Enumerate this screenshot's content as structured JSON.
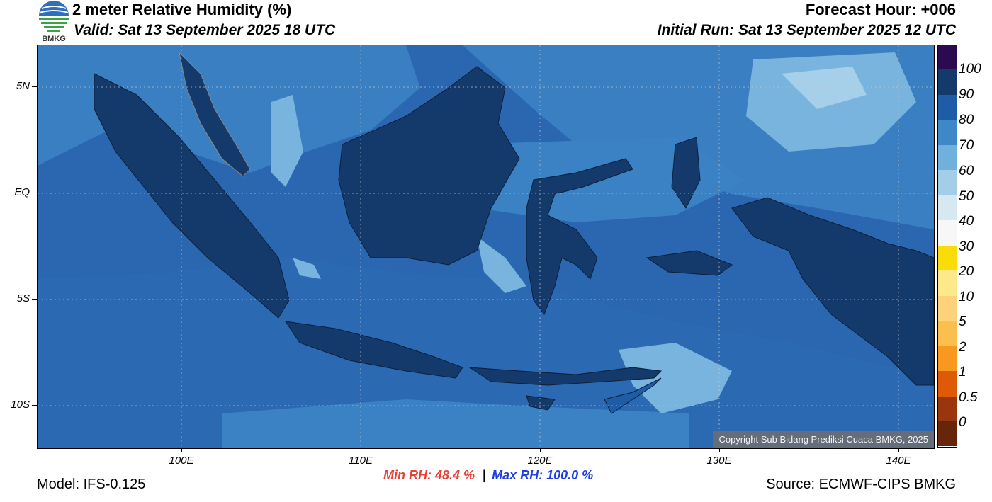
{
  "header": {
    "title": "2 meter Relative Humidity (%)",
    "valid": "Valid: Sat 13 September 2025 18 UTC",
    "forecast_hour": "Forecast Hour: +006",
    "initial_run": "Initial Run: Sat 13 September 2025 12 UTC",
    "logo_text": "BMKG"
  },
  "axes": {
    "lat_labels": [
      "5N",
      "EQ",
      "5S",
      "10S"
    ],
    "lon_labels": [
      "100E",
      "110E",
      "120E",
      "130E",
      "140E"
    ]
  },
  "colorbar": {
    "labels": [
      "100",
      "90",
      "80",
      "70",
      "60",
      "50",
      "40",
      "30",
      "20",
      "10",
      "5",
      "2",
      "1",
      "0.5",
      "0"
    ],
    "colors": [
      "#2c0a50",
      "#143a6c",
      "#1e5ca8",
      "#3f88c8",
      "#6fb0dc",
      "#a4cde8",
      "#d6e8f2",
      "#f7f7f7",
      "#f9dc0a",
      "#fde98a",
      "#fcd27a",
      "#fbbf4d",
      "#f8981f",
      "#df5a08",
      "#9a360e",
      "#65260c",
      "#b01018",
      "#e8413a"
    ]
  },
  "footer": {
    "model": "Model: IFS-0.125",
    "min_rh": "Min RH:  48.4 %",
    "separator": "|",
    "max_rh": "Max RH: 100.0 %",
    "source": "Source: ECMWF-CIPS BMKG",
    "copyright": "Copyright Sub Bidang Prediksi Cuaca BMKG, 2025"
  }
}
